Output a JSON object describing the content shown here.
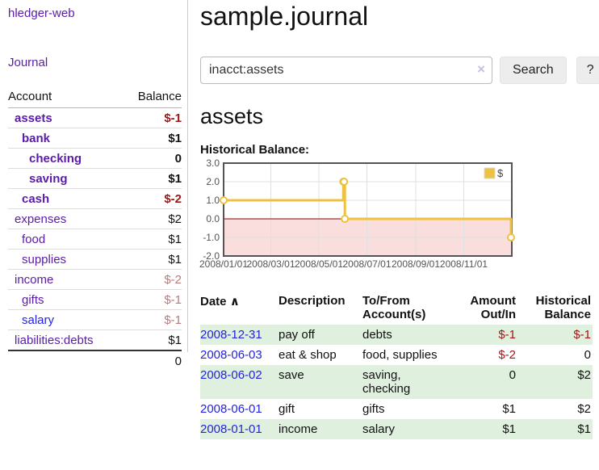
{
  "app": {
    "brand": "hledger-web",
    "nav_journal": "Journal"
  },
  "sidebar": {
    "header": {
      "account": "Account",
      "balance": "Balance"
    },
    "accounts": [
      {
        "name": "assets",
        "balance": "$-1",
        "level": 1,
        "emphasis": "bold",
        "link": "purple",
        "tone": "neg"
      },
      {
        "name": "bank",
        "balance": "$1",
        "level": 2,
        "emphasis": "bold",
        "link": "purple",
        "tone": "plain"
      },
      {
        "name": "checking",
        "balance": "0",
        "level": 3,
        "emphasis": "bold",
        "link": "purple",
        "tone": "plain"
      },
      {
        "name": "saving",
        "balance": "$1",
        "level": 3,
        "emphasis": "bold",
        "link": "purple",
        "tone": "plain"
      },
      {
        "name": "cash",
        "balance": "$-2",
        "level": 2,
        "emphasis": "bold",
        "link": "purple",
        "tone": "neg"
      },
      {
        "name": "expenses",
        "balance": "$2",
        "level": 1,
        "emphasis": "normal",
        "link": "purple",
        "tone": "plain"
      },
      {
        "name": "food",
        "balance": "$1",
        "level": 2,
        "emphasis": "normal",
        "link": "purple",
        "tone": "plain"
      },
      {
        "name": "supplies",
        "balance": "$1",
        "level": 2,
        "emphasis": "normal",
        "link": "purple",
        "tone": "plain"
      },
      {
        "name": "income",
        "balance": "$-2",
        "level": 1,
        "emphasis": "normal",
        "link": "purple",
        "tone": "soft"
      },
      {
        "name": "gifts",
        "balance": "$-1",
        "level": 2,
        "emphasis": "normal",
        "link": "purple",
        "tone": "soft"
      },
      {
        "name": "salary",
        "balance": "$-1",
        "level": 2,
        "emphasis": "normal",
        "link": "blue",
        "tone": "soft"
      },
      {
        "name": "liabilities:debts",
        "balance": "$1",
        "level": 1,
        "emphasis": "normal",
        "link": "purple",
        "tone": "plain"
      }
    ],
    "total": "0"
  },
  "header": {
    "title": "sample.journal"
  },
  "search": {
    "value": "inacct:assets",
    "clear_icon": "×",
    "button_label": "Search",
    "help_label": "?"
  },
  "account_page": {
    "heading": "assets",
    "chart_label": "Historical Balance:"
  },
  "chart_data": {
    "type": "line",
    "step": true,
    "title": "Historical Balance:",
    "xlabel": "",
    "ylabel": "",
    "ylim": [
      -2,
      3
    ],
    "yticks": [
      3,
      2,
      1,
      0,
      -1,
      -2
    ],
    "xrange": [
      "2008-01-01",
      "2009-01-01"
    ],
    "xticks": [
      {
        "date": "2008-01-01",
        "label": "2008/01/01"
      },
      {
        "date": "2008-03-01",
        "label": "2008/03/01"
      },
      {
        "date": "2008-05-01",
        "label": "2008/05/01"
      },
      {
        "date": "2008-07-01",
        "label": "2008/07/01"
      },
      {
        "date": "2008-09-01",
        "label": "2008/09/01"
      },
      {
        "date": "2008-11-01",
        "label": "2008/11/01"
      }
    ],
    "legend": [
      {
        "label": "$",
        "color": "#EDC240"
      }
    ],
    "legend_position": "ne",
    "grid": true,
    "series": [
      {
        "name": "$",
        "color": "#EDC240",
        "points": [
          [
            "2008-01-01",
            1
          ],
          [
            "2008-06-01",
            2
          ],
          [
            "2008-06-02",
            2
          ],
          [
            "2008-06-03",
            0
          ],
          [
            "2008-12-31",
            -1
          ]
        ]
      }
    ],
    "grid_color": "#e0e0e0",
    "border_color": "#545454",
    "zero_line_color": "#8b0000",
    "negative_region_color": "#fadddd",
    "tick_label_color": "#545454"
  },
  "register": {
    "columns": {
      "date": "Date",
      "sort_indicator": "∧",
      "description": "Description",
      "accounts": "To/From Account(s)",
      "amount": "Amount Out/In",
      "balance": "Historical Balance"
    },
    "rows": [
      {
        "date": "2008-12-31",
        "description": "pay off",
        "accounts": "debts",
        "amount": "$-1",
        "amount_tone": "neg",
        "balance": "$-1",
        "balance_tone": "neg"
      },
      {
        "date": "2008-06-03",
        "description": "eat & shop",
        "accounts": "food, supplies",
        "amount": "$-2",
        "amount_tone": "neg",
        "balance": "0",
        "balance_tone": "plain"
      },
      {
        "date": "2008-06-02",
        "description": "save",
        "accounts": "saving, checking",
        "amount": "0",
        "amount_tone": "plain",
        "balance": "$2",
        "balance_tone": "plain"
      },
      {
        "date": "2008-06-01",
        "description": "gift",
        "accounts": "gifts",
        "amount": "$1",
        "amount_tone": "plain",
        "balance": "$2",
        "balance_tone": "plain"
      },
      {
        "date": "2008-01-01",
        "description": "income",
        "accounts": "salary",
        "amount": "$1",
        "amount_tone": "plain",
        "balance": "$1",
        "balance_tone": "plain"
      }
    ]
  }
}
